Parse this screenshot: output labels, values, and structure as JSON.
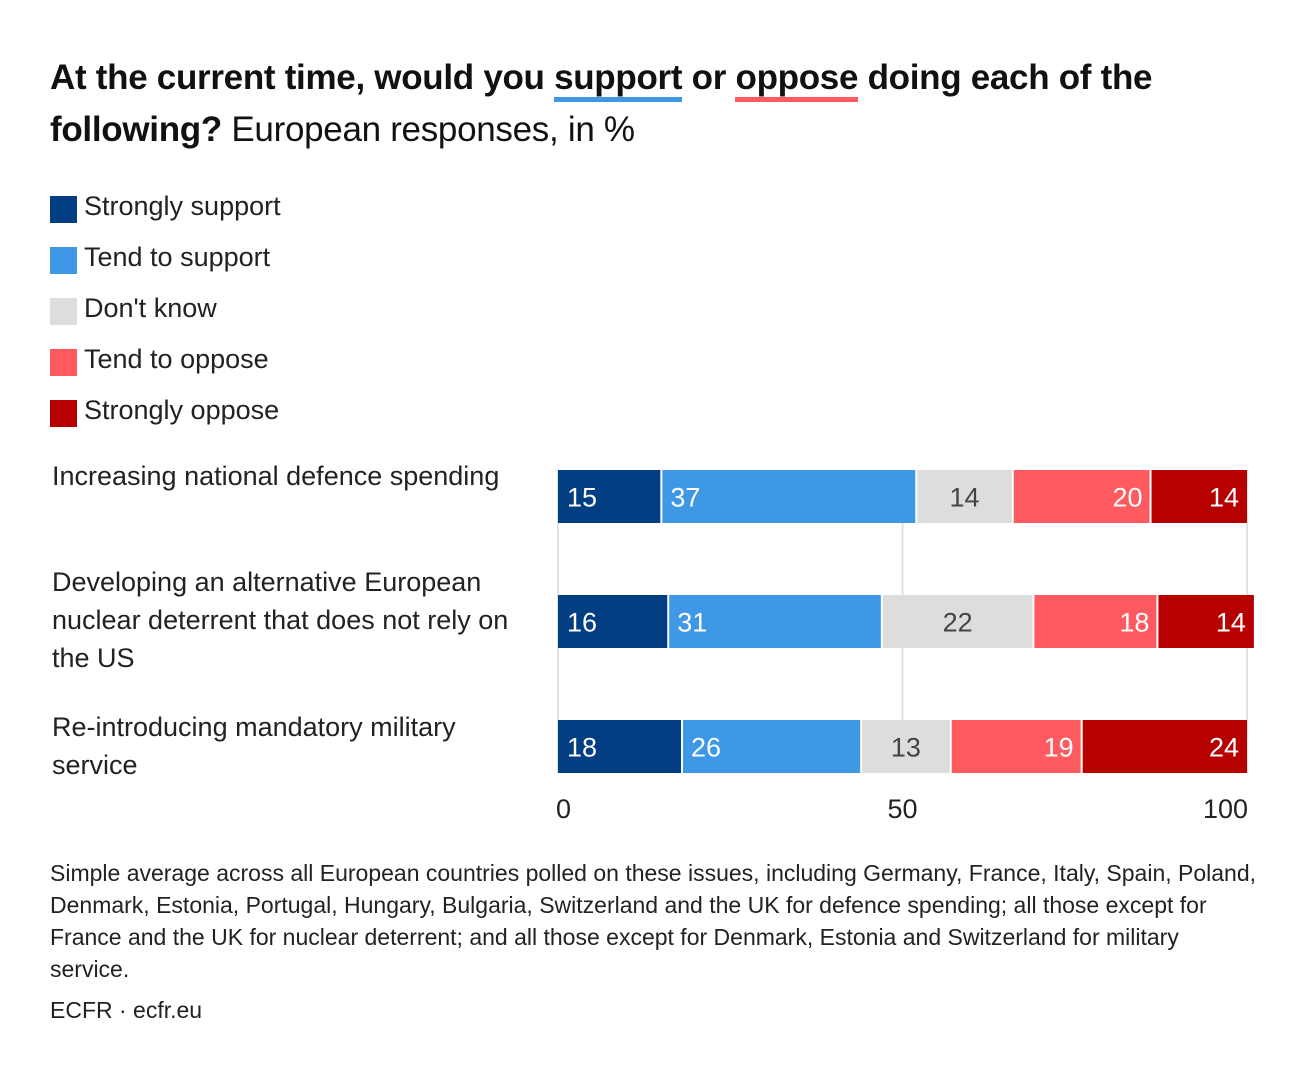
{
  "title": {
    "part1": "At the current time, would you ",
    "support_word": "support",
    "part2": " or ",
    "oppose_word": "oppose",
    "part3": " doing each of the following?",
    "subtitle": "European responses, in %"
  },
  "colors": {
    "strongly_support": "#033d82",
    "tend_to_support": "#3e98e5",
    "dont_know": "#dddddd",
    "tend_to_oppose": "#ff5a5f",
    "strongly_oppose": "#b70000"
  },
  "chart_data": {
    "type": "bar",
    "orientation": "horizontal",
    "stacked": true,
    "categories": [
      "Increasing national defence spending",
      "Developing an alternative European nuclear deterrent that does not rely on the US",
      "Re-introducing mandatory military service"
    ],
    "series": [
      {
        "name": "Strongly support",
        "color": "#033d82",
        "values": [
          15,
          16,
          18
        ]
      },
      {
        "name": "Tend to support",
        "color": "#3e98e5",
        "values": [
          37,
          31,
          26
        ]
      },
      {
        "name": "Don't know",
        "color": "#dddddd",
        "values": [
          14,
          22,
          13
        ]
      },
      {
        "name": "Tend to oppose",
        "color": "#ff5a5f",
        "values": [
          20,
          18,
          19
        ]
      },
      {
        "name": "Strongly oppose",
        "color": "#b70000",
        "values": [
          14,
          14,
          24
        ]
      }
    ],
    "xlim": [
      0,
      100
    ],
    "xticks": [
      0,
      50,
      100
    ],
    "xlabel": "",
    "ylabel": "",
    "grid": true,
    "legend": "top-left"
  },
  "source": "Simple average across all European countries polled on these issues, including Germany, France, Italy, Spain, Poland, Denmark, Estonia, Portugal, Hungary, Bulgaria, Switzerland and the UK for defence spending; all those except for France and the UK for nuclear deterrent; and all those except for Denmark, Estonia and Switzerland for military service.",
  "credit": "ECFR · ecfr.eu"
}
